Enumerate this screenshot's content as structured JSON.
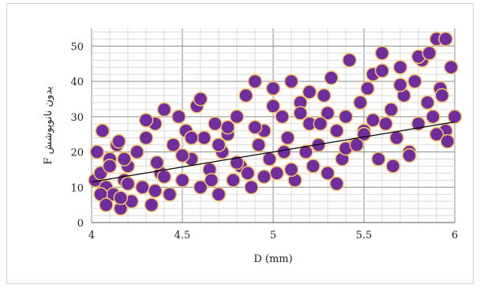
{
  "chart_data": {
    "type": "scatter",
    "title": "",
    "xlabel": "D (mm)",
    "ylabel": "F بدون نانوپوشش",
    "xlim": [
      4,
      6
    ],
    "ylim": [
      0,
      55
    ],
    "xticks": [
      "4",
      "4.5",
      "5",
      "5.5",
      "6"
    ],
    "yticks": [
      "0",
      "10",
      "20",
      "30",
      "40",
      "50"
    ],
    "grid": true,
    "legend": "none",
    "marker_fill": "#6f2d9e",
    "marker_edge": "#f5c565",
    "trendline": {
      "type": "linear",
      "x": [
        4,
        6
      ],
      "y": [
        11.5,
        28.5
      ],
      "color": "#000000"
    },
    "series": [
      {
        "x": [
          4.02,
          4.03,
          4.05,
          4.06,
          4.08,
          4.1,
          4.12,
          4.14,
          4.16,
          4.18,
          4.2,
          4.22,
          4.25,
          4.28,
          4.3,
          4.33,
          4.35,
          4.38,
          4.4,
          4.43,
          4.45,
          4.48,
          4.5,
          4.52,
          4.55,
          4.58,
          4.6,
          4.62,
          4.65,
          4.68,
          4.7,
          4.72,
          4.75,
          4.78,
          4.8,
          4.82,
          4.85,
          4.88,
          4.9,
          4.92,
          4.95,
          4.98,
          5.0,
          5.02,
          5.05,
          5.08,
          5.1,
          5.12,
          5.15,
          5.18,
          5.2,
          5.22,
          5.25,
          5.28,
          5.3,
          5.32,
          5.35,
          5.38,
          5.4,
          5.42,
          5.45,
          5.48,
          5.5,
          5.52,
          5.55,
          5.58,
          5.6,
          5.62,
          5.65,
          5.68,
          5.7,
          5.72,
          5.75,
          5.78,
          5.8,
          5.82,
          5.85,
          5.88,
          5.9,
          5.92,
          5.95,
          5.98,
          6.0,
          4.05,
          4.1,
          4.15,
          4.2,
          4.3,
          4.4,
          4.5,
          4.6,
          4.7,
          4.8,
          4.9,
          5.0,
          5.1,
          5.2,
          5.3,
          5.4,
          5.5,
          5.6,
          5.7,
          5.8,
          5.9,
          5.95,
          4.08,
          4.18,
          4.35,
          4.55,
          4.75,
          4.95,
          5.15,
          5.35,
          5.55,
          5.75,
          5.93,
          4.16,
          4.36,
          4.66,
          4.86,
          5.06,
          5.26,
          5.46,
          5.66,
          5.86,
          5.96
        ],
        "y": [
          12,
          20,
          14,
          26,
          10,
          18,
          8,
          22,
          4,
          12,
          16,
          6,
          20,
          10,
          24,
          5,
          28,
          14,
          32,
          8,
          22,
          30,
          12,
          26,
          18,
          33,
          10,
          24,
          15,
          28,
          8,
          20,
          25,
          12,
          30,
          16,
          36,
          10,
          40,
          22,
          26,
          18,
          38,
          14,
          30,
          24,
          40,
          12,
          34,
          20,
          28,
          16,
          22,
          36,
          14,
          41,
          26,
          18,
          30,
          46,
          22,
          34,
          26,
          38,
          42,
          18,
          48,
          28,
          32,
          24,
          44,
          36,
          20,
          40,
          28,
          46,
          34,
          30,
          52,
          38,
          26,
          44,
          30,
          8,
          16,
          23,
          11,
          29,
          13,
          19,
          35,
          22,
          17,
          27,
          33,
          15,
          37,
          31,
          21,
          25,
          43,
          39,
          47,
          25,
          52,
          5,
          18,
          9,
          24,
          27,
          13,
          31,
          11,
          29,
          19,
          36,
          7,
          17,
          12,
          14,
          20,
          28,
          22,
          16,
          48,
          23
        ]
      }
    ]
  }
}
